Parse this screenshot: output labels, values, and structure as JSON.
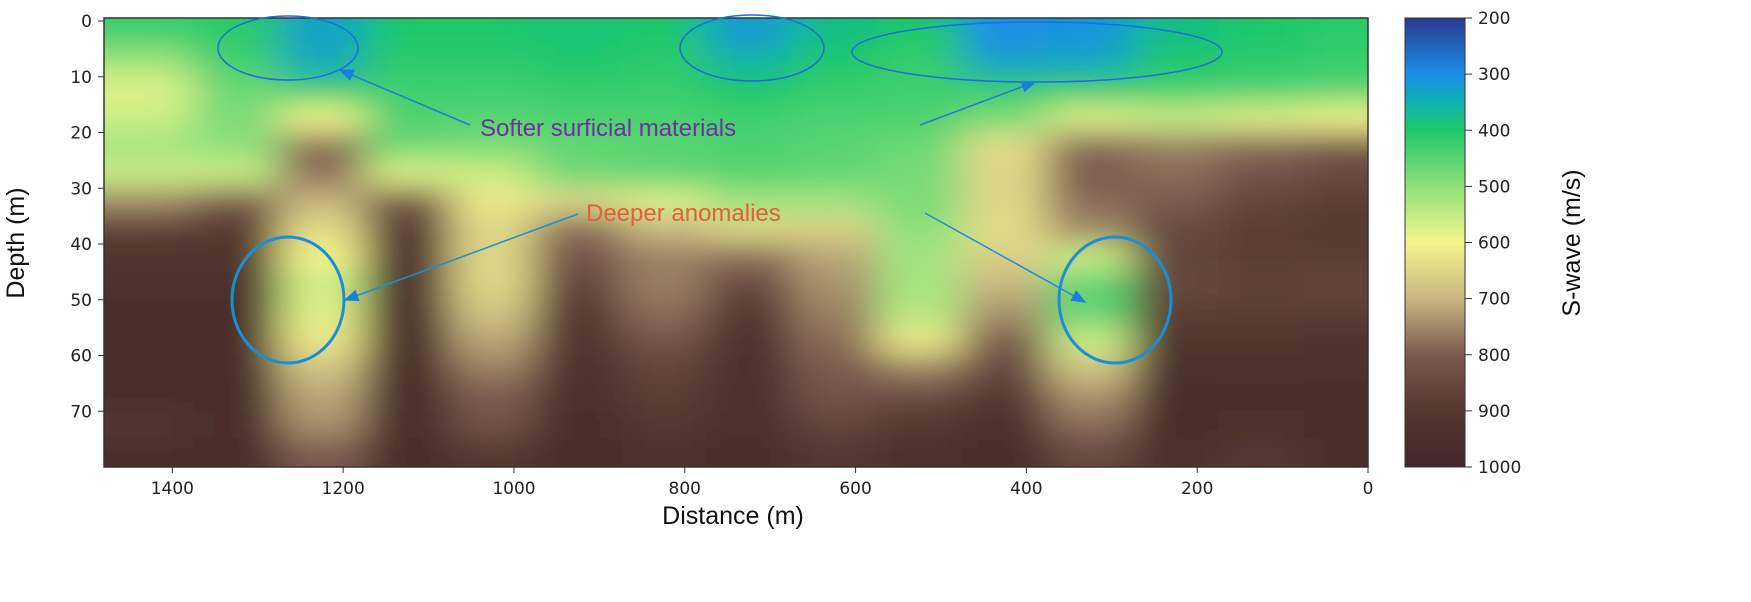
{
  "chart_data": {
    "type": "heatmap",
    "xlabel": "Distance (m)",
    "ylabel": "Depth (m)",
    "xlim": [
      1480,
      0
    ],
    "ylim": [
      0,
      80
    ],
    "x_ticks": [
      1400,
      1200,
      1000,
      800,
      600,
      400,
      200,
      0
    ],
    "y_ticks": [
      0,
      10,
      20,
      30,
      40,
      50,
      60,
      70
    ],
    "colorbar": {
      "label": "S-wave (m/s)",
      "range": [
        200,
        1000
      ],
      "ticks": [
        200,
        300,
        400,
        500,
        600,
        700,
        800,
        900,
        1000
      ],
      "stops": [
        {
          "v": 200,
          "c": "#2a3a8f"
        },
        {
          "v": 300,
          "c": "#1a8fe8"
        },
        {
          "v": 350,
          "c": "#10b0b0"
        },
        {
          "v": 400,
          "c": "#1ec86a"
        },
        {
          "v": 500,
          "c": "#8fe07a"
        },
        {
          "v": 600,
          "c": "#f3f58c"
        },
        {
          "v": 700,
          "c": "#c9b681"
        },
        {
          "v": 800,
          "c": "#7a5a4e"
        },
        {
          "v": 900,
          "c": "#553730"
        },
        {
          "v": 1000,
          "c": "#43282a"
        }
      ]
    },
    "grid": {
      "distance": [
        1425,
        1325,
        1225,
        1125,
        1025,
        925,
        825,
        725,
        625,
        525,
        425,
        325,
        225,
        125,
        25
      ],
      "depth": [
        2.5,
        7.5,
        12.5,
        17.5,
        22.5,
        27.5,
        32.5,
        37.5,
        42.5,
        47.5,
        52.5,
        57.5,
        62.5,
        67.5,
        72.5,
        77.5
      ],
      "values": [
        [
          430,
          410,
          330,
          400,
          400,
          390,
          400,
          320,
          380,
          400,
          300,
          310,
          380,
          400,
          410
        ],
        [
          520,
          430,
          340,
          410,
          410,
          400,
          410,
          360,
          400,
          420,
          330,
          340,
          400,
          410,
          420
        ],
        [
          580,
          470,
          420,
          430,
          430,
          420,
          420,
          400,
          420,
          430,
          420,
          420,
          430,
          440,
          450
        ],
        [
          560,
          480,
          600,
          440,
          450,
          440,
          440,
          430,
          440,
          440,
          480,
          580,
          560,
          580,
          600
        ],
        [
          520,
          500,
          780,
          470,
          480,
          460,
          450,
          440,
          450,
          470,
          640,
          780,
          760,
          780,
          800
        ],
        [
          560,
          560,
          780,
          580,
          560,
          470,
          460,
          450,
          460,
          480,
          650,
          800,
          780,
          820,
          850
        ],
        [
          750,
          800,
          700,
          820,
          620,
          650,
          580,
          520,
          520,
          480,
          650,
          780,
          800,
          860,
          880
        ],
        [
          880,
          900,
          640,
          900,
          650,
          780,
          700,
          650,
          660,
          500,
          640,
          750,
          850,
          880,
          900
        ],
        [
          920,
          920,
          600,
          940,
          650,
          820,
          760,
          780,
          720,
          520,
          660,
          560,
          860,
          880,
          880
        ],
        [
          950,
          950,
          560,
          950,
          650,
          860,
          760,
          850,
          740,
          520,
          700,
          450,
          850,
          870,
          860
        ],
        [
          960,
          960,
          580,
          960,
          680,
          900,
          780,
          900,
          760,
          540,
          740,
          460,
          880,
          880,
          880
        ],
        [
          960,
          960,
          620,
          960,
          720,
          920,
          820,
          930,
          780,
          620,
          800,
          560,
          920,
          920,
          930
        ],
        [
          960,
          970,
          680,
          970,
          760,
          940,
          860,
          940,
          800,
          760,
          850,
          680,
          950,
          950,
          950
        ],
        [
          970,
          970,
          720,
          970,
          800,
          950,
          880,
          950,
          820,
          850,
          900,
          740,
          960,
          960,
          960
        ],
        [
          900,
          970,
          740,
          970,
          820,
          960,
          900,
          950,
          860,
          900,
          940,
          780,
          960,
          950,
          960
        ],
        [
          960,
          970,
          800,
          970,
          900,
          970,
          940,
          960,
          900,
          950,
          960,
          850,
          950,
          900,
          960
        ]
      ]
    },
    "annotations": {
      "softer": {
        "text": "Softer surficial materials",
        "color": "#7030a0"
      },
      "deeper": {
        "text": "Deeper anomalies",
        "color": "#e0603a"
      },
      "ellipse_color": "#1a7fd8"
    }
  }
}
